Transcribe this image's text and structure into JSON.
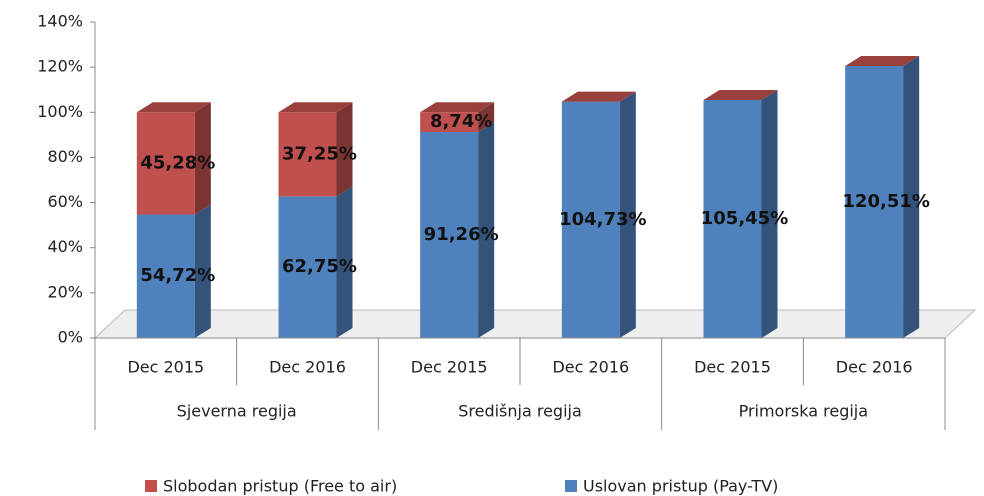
{
  "chart_data": {
    "type": "bar3d_stacked",
    "categories": [
      "Dec 2015",
      "Dec 2016",
      "Dec 2015",
      "Dec 2016",
      "Dec 2015",
      "Dec 2016"
    ],
    "group_labels": [
      "Sjeverna regija",
      "Središnja regija",
      "Primorska regija"
    ],
    "series": [
      {
        "name": "Slobodan pristup (Free to air)",
        "color": "#c0504d",
        "values": [
          45.28,
          37.25,
          8.74,
          0,
          0,
          0
        ],
        "value_labels": [
          "45,28%",
          "37,25%",
          "8,74%",
          null,
          null,
          null
        ]
      },
      {
        "name": "Uslovan pristup (Pay-TV)",
        "color": "#4f81bd",
        "values": [
          54.72,
          62.75,
          91.26,
          104.73,
          105.45,
          120.51
        ],
        "value_labels": [
          "54,72%",
          "62,75%",
          "91,26%",
          "104,73%",
          "105,45%",
          "120,51%"
        ]
      }
    ],
    "ylim": [
      0,
      140
    ],
    "yticks": [
      {
        "value": 0,
        "label": "0%"
      },
      {
        "value": 20,
        "label": "20%"
      },
      {
        "value": 40,
        "label": "40%"
      },
      {
        "value": 60,
        "label": "60%"
      },
      {
        "value": 80,
        "label": "80%"
      },
      {
        "value": 100,
        "label": "100%"
      },
      {
        "value": 120,
        "label": "120%"
      },
      {
        "value": 140,
        "label": "140%"
      }
    ],
    "legend": "bottom"
  }
}
